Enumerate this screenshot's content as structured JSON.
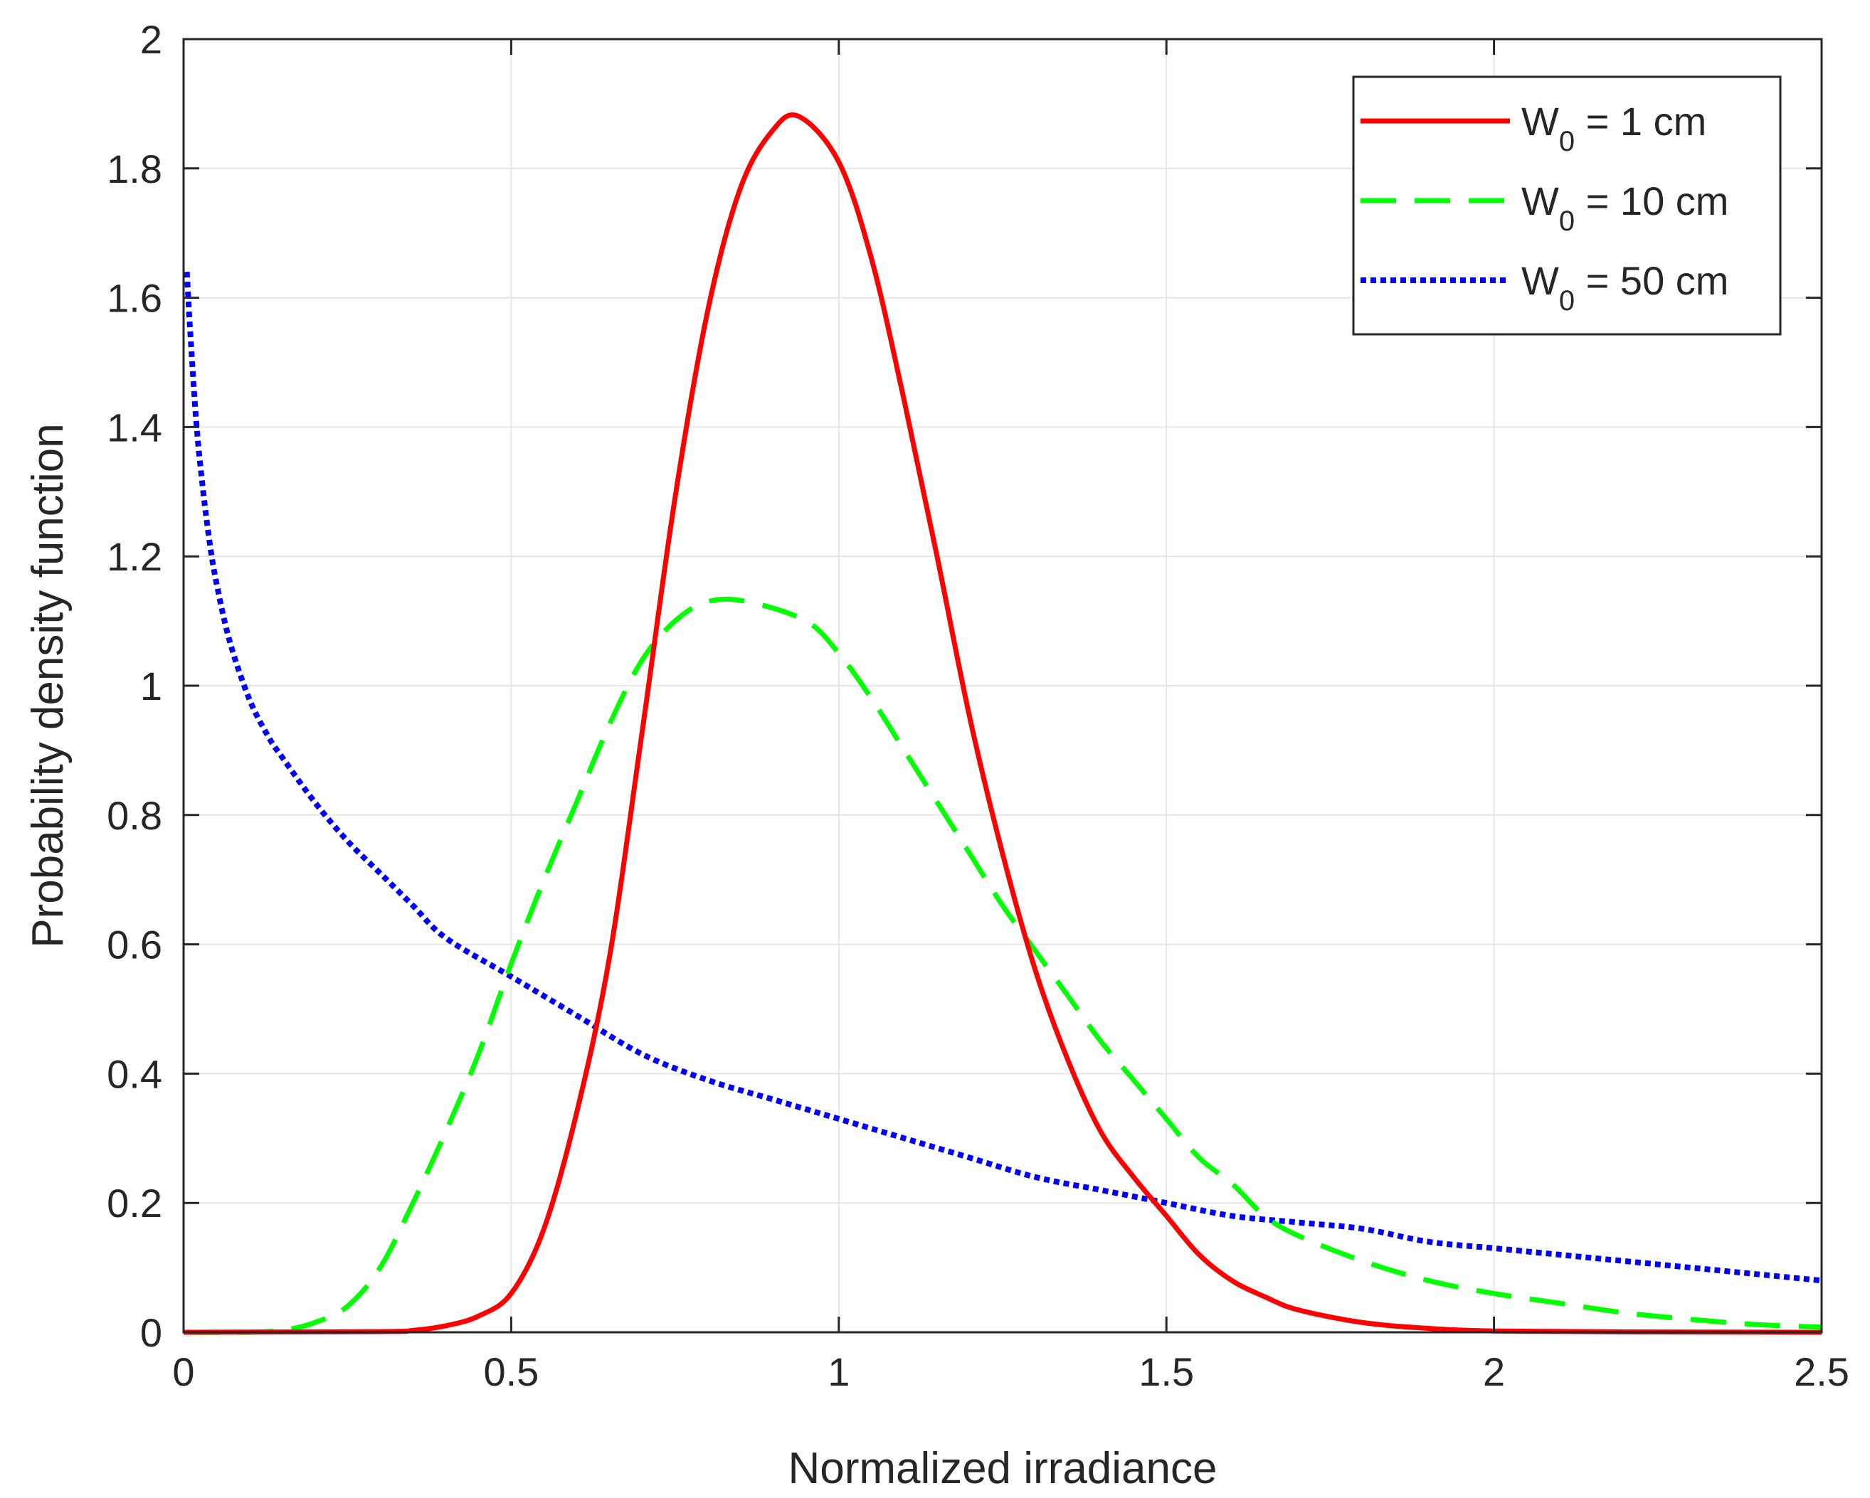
{
  "chart_data": {
    "type": "line",
    "title": "",
    "xlabel": "Normalized irradiance",
    "ylabel": "Probability density function",
    "xlim": [
      0,
      2.5
    ],
    "ylim": [
      0,
      2
    ],
    "xticks": [
      0,
      0.5,
      1,
      1.5,
      2,
      2.5
    ],
    "xtick_labels": [
      "0",
      "0.5",
      "1",
      "1.5",
      "2",
      "2.5"
    ],
    "yticks": [
      0,
      0.2,
      0.4,
      0.6,
      0.8,
      1,
      1.2,
      1.4,
      1.6,
      1.8,
      2
    ],
    "ytick_labels": [
      "0",
      "0.2",
      "0.4",
      "0.6",
      "0.8",
      "1",
      "1.2",
      "1.4",
      "1.6",
      "1.8",
      "2"
    ],
    "grid": true,
    "legend_position": "top-right",
    "series": [
      {
        "name": "W0 = 1 cm",
        "legend": {
          "main": "W",
          "sub": "0",
          "rest": " = 1 cm"
        },
        "color": "#ff0000",
        "style": "solid",
        "x": [
          0.0,
          0.3,
          0.35,
          0.4,
          0.45,
          0.5,
          0.55,
          0.6,
          0.65,
          0.7,
          0.75,
          0.8,
          0.85,
          0.9,
          0.94,
          1.0,
          1.05,
          1.1,
          1.15,
          1.2,
          1.25,
          1.3,
          1.35,
          1.4,
          1.45,
          1.5,
          1.55,
          1.6,
          1.65,
          1.7,
          1.8,
          1.9,
          2.0,
          2.2,
          2.5
        ],
        "y": [
          0.0,
          0.001,
          0.003,
          0.01,
          0.025,
          0.06,
          0.16,
          0.34,
          0.58,
          0.93,
          1.29,
          1.58,
          1.77,
          1.86,
          1.88,
          1.81,
          1.66,
          1.44,
          1.2,
          0.95,
          0.74,
          0.56,
          0.42,
          0.31,
          0.24,
          0.18,
          0.12,
          0.08,
          0.055,
          0.035,
          0.015,
          0.006,
          0.002,
          0.0005,
          0.0
        ]
      },
      {
        "name": "W0 = 10 cm",
        "legend": {
          "main": "W",
          "sub": "0",
          "rest": " = 10 cm"
        },
        "color": "#00ff00",
        "style": "dashed",
        "x": [
          0.0,
          0.1,
          0.15,
          0.2,
          0.25,
          0.3,
          0.35,
          0.4,
          0.45,
          0.5,
          0.55,
          0.6,
          0.65,
          0.7,
          0.75,
          0.8,
          0.86,
          0.95,
          1.0,
          1.05,
          1.1,
          1.15,
          1.2,
          1.25,
          1.3,
          1.35,
          1.4,
          1.45,
          1.5,
          1.55,
          1.6,
          1.65,
          1.7,
          1.8,
          1.9,
          2.0,
          2.1,
          2.2,
          2.3,
          2.4,
          2.5
        ],
        "y": [
          0.0,
          0.0,
          0.003,
          0.015,
          0.04,
          0.1,
          0.2,
          0.31,
          0.43,
          0.57,
          0.7,
          0.82,
          0.94,
          1.04,
          1.1,
          1.13,
          1.13,
          1.1,
          1.05,
          0.98,
          0.9,
          0.82,
          0.74,
          0.66,
          0.59,
          0.52,
          0.45,
          0.39,
          0.33,
          0.27,
          0.23,
          0.18,
          0.15,
          0.11,
          0.08,
          0.06,
          0.045,
          0.03,
          0.02,
          0.012,
          0.008
        ]
      },
      {
        "name": "W0 = 50 cm",
        "legend": {
          "main": "W",
          "sub": "0",
          "rest": " = 50 cm"
        },
        "color": "#0000ff",
        "style": "dotted",
        "x": [
          0.005,
          0.01,
          0.02,
          0.03,
          0.04,
          0.05,
          0.07,
          0.1,
          0.13,
          0.15,
          0.2,
          0.25,
          0.3,
          0.35,
          0.4,
          0.5,
          0.6,
          0.7,
          0.8,
          0.9,
          1.0,
          1.1,
          1.2,
          1.3,
          1.4,
          1.5,
          1.6,
          1.7,
          1.8,
          1.9,
          2.0,
          2.1,
          2.2,
          2.3,
          2.4,
          2.5
        ],
        "y": [
          1.64,
          1.55,
          1.4,
          1.3,
          1.22,
          1.16,
          1.07,
          0.98,
          0.92,
          0.89,
          0.82,
          0.76,
          0.71,
          0.66,
          0.61,
          0.55,
          0.49,
          0.43,
          0.39,
          0.36,
          0.33,
          0.3,
          0.27,
          0.24,
          0.22,
          0.2,
          0.18,
          0.17,
          0.16,
          0.14,
          0.13,
          0.12,
          0.11,
          0.1,
          0.09,
          0.08
        ]
      }
    ]
  }
}
